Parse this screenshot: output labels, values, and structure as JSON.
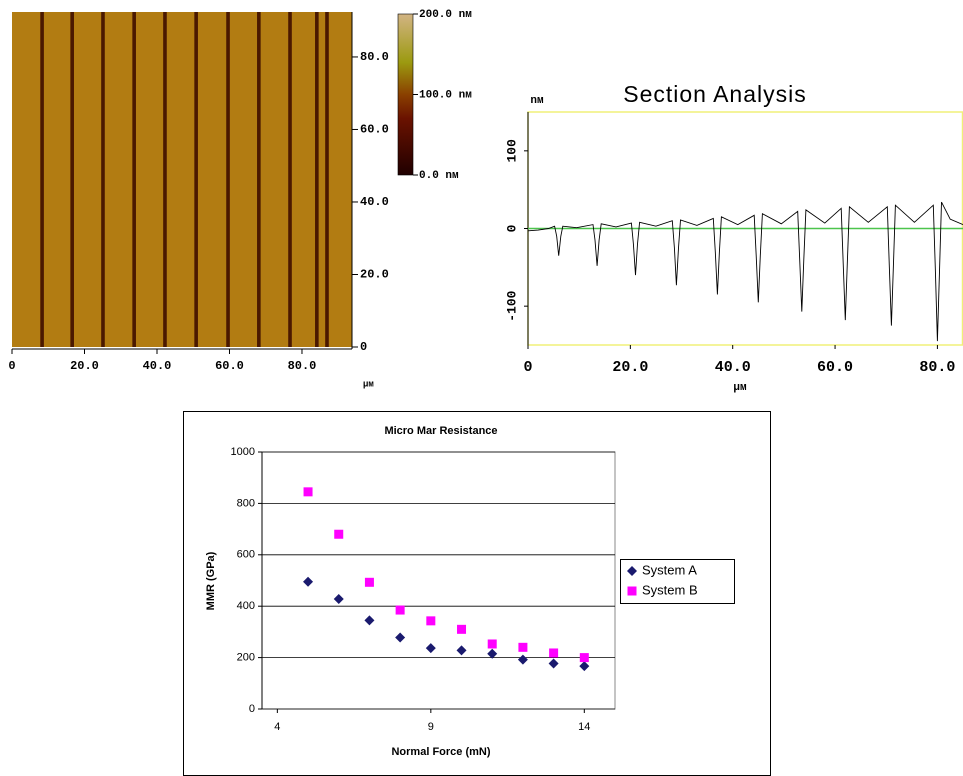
{
  "chart_data": [
    {
      "type": "image",
      "x_unit": "µм",
      "xlim": [
        0,
        93.8
      ],
      "xticks": [
        0,
        {
          "value": 20,
          "label": "20.0"
        },
        {
          "value": 40,
          "label": "40.0"
        },
        {
          "value": 60,
          "label": "60.0"
        },
        {
          "value": 80,
          "label": "80.0"
        }
      ],
      "ylim": [
        0,
        92.4
      ],
      "yticks": [
        0,
        {
          "value": 20,
          "label": "20.0"
        },
        {
          "value": 40,
          "label": "40.0"
        },
        {
          "value": 60,
          "label": "60.0"
        },
        {
          "value": 80,
          "label": "80.0"
        }
      ],
      "background_color": "#b27c12",
      "groove_color": "#4a1800",
      "grooves": [
        8.3,
        16.6,
        25.1,
        33.7,
        42.2,
        50.8,
        59.6,
        68.1,
        76.7,
        84.1,
        86.9
      ],
      "colorbar": {
        "lim": [
          0,
          200
        ],
        "ticks": [
          {
            "value": 200,
            "label": "200.0 nм"
          },
          {
            "value": 100,
            "label": "100.0 nм"
          },
          {
            "value": 0,
            "label": "0.0 nм"
          }
        ],
        "stops": [
          {
            "value": 0,
            "color": "#200000"
          },
          {
            "value": 70,
            "color": "#6a1200"
          },
          {
            "value": 100,
            "color": "#8a4000"
          },
          {
            "value": 140,
            "color": "#9c9a10"
          },
          {
            "value": 200,
            "color": "#d2b483"
          }
        ]
      }
    },
    {
      "type": "line",
      "title": "Section Analysis",
      "y_unit": "nм",
      "x_unit": "µм",
      "xlim": [
        0,
        85
      ],
      "xticks": [
        0,
        {
          "value": 20,
          "label": "20.0"
        },
        {
          "value": 40,
          "label": "40.0"
        },
        {
          "value": 60,
          "label": "60.0"
        },
        {
          "value": 80,
          "label": "80.0"
        }
      ],
      "ylim": [
        -150,
        150
      ],
      "yticks": [
        -100,
        0,
        100
      ],
      "x": [
        0,
        2,
        4,
        5.2,
        5.6,
        6,
        6.4,
        6.8,
        9.5,
        12.7,
        13.1,
        13.5,
        13.9,
        14.3,
        17.2,
        20.2,
        20.6,
        21,
        21.4,
        21.8,
        25,
        28.2,
        28.6,
        29,
        29.4,
        29.8,
        33,
        36.2,
        36.6,
        37,
        37.4,
        37.8,
        41,
        44.2,
        44.6,
        45,
        45.4,
        45.8,
        49.5,
        52.7,
        53.1,
        53.5,
        53.9,
        54.3,
        58,
        61.2,
        61.6,
        62,
        62.4,
        62.8,
        66.5,
        70.2,
        70.6,
        71,
        71.4,
        71.8,
        75.5,
        79.2,
        79.6,
        80,
        80.4,
        80.8,
        82.5,
        85
      ],
      "series": [
        {
          "color": "#000000",
          "values": [
            -3,
            -2,
            0,
            3,
            -10,
            -35,
            -10,
            3,
            1,
            5,
            -15,
            -48,
            -15,
            6,
            2,
            7,
            -20,
            -60,
            -20,
            8,
            3,
            10,
            -25,
            -73,
            -25,
            11,
            4,
            13,
            -30,
            -85,
            -30,
            15,
            5,
            17,
            -35,
            -95,
            -35,
            19,
            6,
            22,
            -40,
            -107,
            -40,
            24,
            7,
            26,
            -45,
            -118,
            -45,
            28,
            8,
            28,
            -48,
            -125,
            -48,
            30,
            8,
            30,
            -55,
            -145,
            -55,
            34,
            12,
            5
          ]
        }
      ],
      "reference_line": {
        "value": 0,
        "color": "#4cc44c"
      },
      "frame_color": "#f0f078"
    },
    {
      "type": "scatter",
      "title": "Micro Mar Resistance",
      "x_label": "Normal Force (mN)",
      "y_label": "MMR (GPa)",
      "xlim": [
        3.5,
        15
      ],
      "xticks": [
        4,
        9,
        14
      ],
      "ylim": [
        0,
        1000
      ],
      "yticks": [
        0,
        200,
        400,
        600,
        800,
        1000
      ],
      "grid": true,
      "legend": "right",
      "x": [
        5,
        6,
        7,
        8,
        9,
        10,
        11,
        12,
        13,
        14
      ],
      "series": [
        {
          "name": "System A",
          "color": "#1a1a6e",
          "marker": "diamond",
          "values": [
            495,
            428,
            345,
            278,
            237,
            228,
            215,
            192,
            177,
            167
          ]
        },
        {
          "name": "System B",
          "color": "#ff00ff",
          "marker": "square",
          "values": [
            845,
            680,
            493,
            385,
            343,
            310,
            253,
            240,
            218,
            200
          ]
        }
      ]
    }
  ]
}
